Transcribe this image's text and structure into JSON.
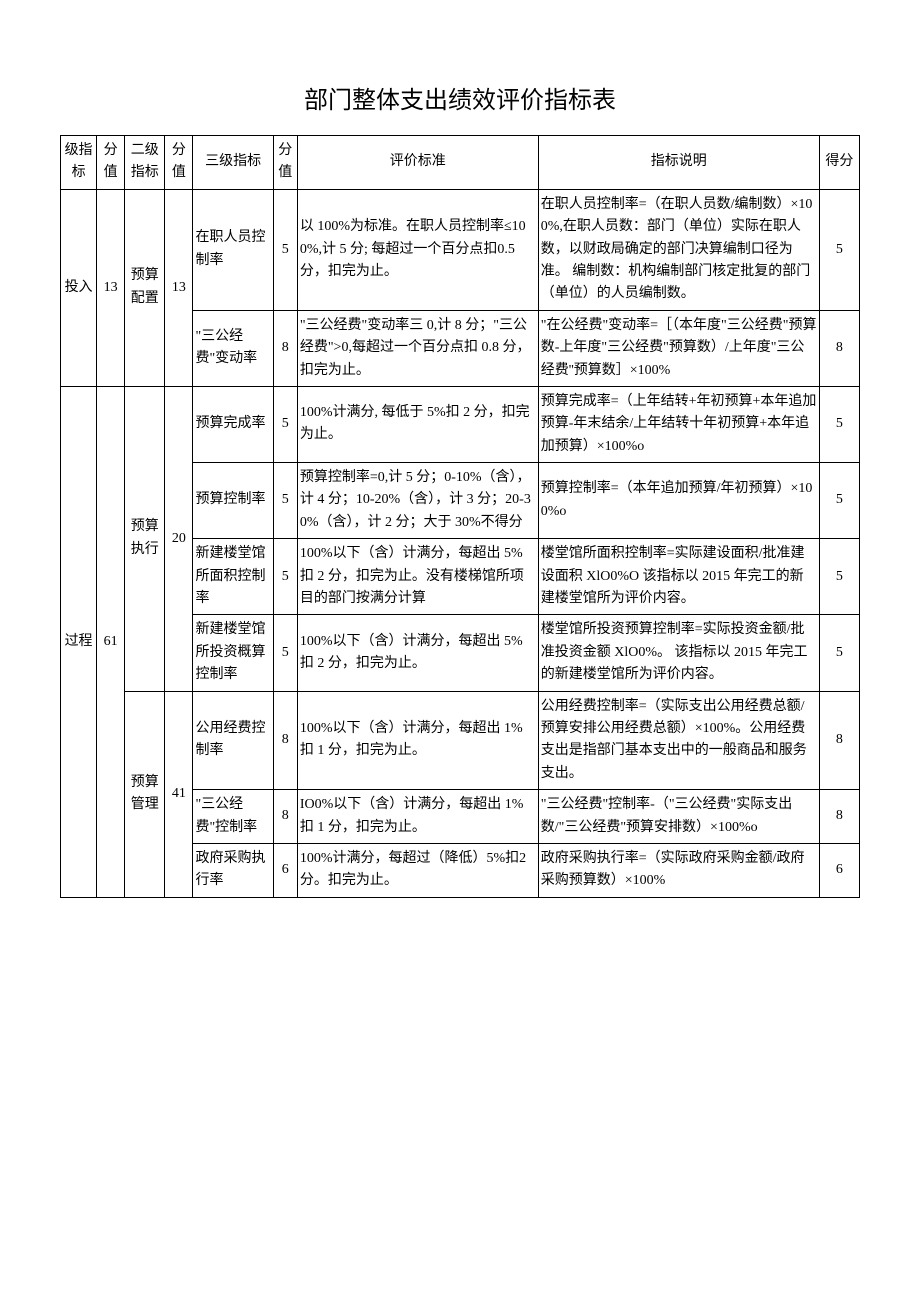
{
  "title": "部门整体支出绩效评价指标表",
  "headers": {
    "level1": "级指标",
    "score1": "分值",
    "level2": "二级指标",
    "score2": "分值",
    "level3": "三级指标",
    "score3": "分值",
    "criteria": "评价标准",
    "description": "指标说明",
    "score": "得分"
  },
  "groups": [
    {
      "l1": "投入",
      "s1": "13",
      "subs": [
        {
          "l2": "预算配置",
          "s2": "13",
          "rows": [
            {
              "l3": "在职人员控制率",
              "s3": "5",
              "std": "以 100%为标准。在职人员控制率≤100%,计 5 分; 每超过一个百分点扣0.5 分，扣完为止。",
              "desc": "在职人员控制率=（在职人员数/编制数）×100%,在职人员数：部门（单位）实际在职人数，以财政局确定的部门决算编制口径为准。\n编制数：机构编制部门核定批复的部门（单位）的人员编制数。",
              "sc": "5"
            },
            {
              "l3": "\"三公经费\"变动率",
              "s3": "8",
              "std": "\"三公经费\"变动率三 0,计 8 分；\"三公经费\">0,每超过一个百分点扣 0.8 分，扣完为止。",
              "desc": "\"在公经费\"变动率=［（本年度\"三公经费\"预算数-上年度\"三公经费\"预算数）/上年度\"三公经费''预算数］×100%",
              "sc": "8"
            }
          ]
        }
      ]
    },
    {
      "l1": "过程",
      "s1": "61",
      "subs": [
        {
          "l2": "预算执行",
          "s2": "20",
          "rows": [
            {
              "l3": "预算完成率",
              "s3": "5",
              "std": "100%计满分, 每低于 5%扣 2 分，扣完为止。",
              "desc": "预算完成率=（上年结转+年初预算+本年追加预算-年末结余/上年结转十年初预算+本年追加预算）×100%o",
              "sc": "5"
            },
            {
              "l3": "预算控制率",
              "s3": "5",
              "std": "预算控制率=0,计 5 分；0-10%（含），计 4 分；10-20%（含），计 3 分；20-30%（含），计 2 分；大于 30%不得分",
              "desc": "预算控制率=（本年追加预算/年初预算）×100%o",
              "sc": "5"
            },
            {
              "l3": "新建楼堂馆所面积控制率",
              "s3": "5",
              "std": "100%以下（含）计满分，每超出 5%扣 2 分，扣完为止。没有楼梯馆所项目的部门按满分计算",
              "desc": "楼堂馆所面积控制率=实际建设面积/批准建设面积 XlO0%O\n该指标以 2015 年完工的新建楼堂馆所为评价内容。",
              "sc": "5"
            },
            {
              "l3": "新建楼堂馆所投资概算控制率",
              "s3": "5",
              "std": "100%以下（含）计满分，每超出 5%扣 2 分，扣完为止。",
              "desc": "楼堂馆所投资预算控制率=实际投资金额/批准投资金额 XlO0%。\n该指标以 2015 年完工的新建楼堂馆所为评价内容。",
              "sc": "5"
            }
          ]
        },
        {
          "l2": "预算管理",
          "s2": "41",
          "rows": [
            {
              "l3": "公用经费控制率",
              "s3": "8",
              "std": "100%以下（含）计满分，每超出 1%扣 1 分，扣完为止。",
              "desc": "公用经费控制率=（实际支出公用经费总额/预算安排公用经费总额）×100%。公用经费支出是指部门基本支出中的一般商品和服务支出。",
              "sc": "8"
            },
            {
              "l3": "\"三公经费\"控制率",
              "s3": "8",
              "std": "IO0%以下（含）计满分，每超出 1%扣 1 分，扣完为止。",
              "desc": "\"三公经费\"控制率-（\"三公经费\"实际支出数/\"三公经费\"预算安排数）×100%o",
              "sc": "8"
            },
            {
              "l3": "政府采购执行率",
              "s3": "6",
              "std": "100%计满分，每超过（降低）5%扣2 分。扣完为止。",
              "desc": "政府采购执行率=（实际政府采购金额/政府采购预算数）×100%",
              "sc": "6"
            }
          ]
        }
      ]
    }
  ]
}
